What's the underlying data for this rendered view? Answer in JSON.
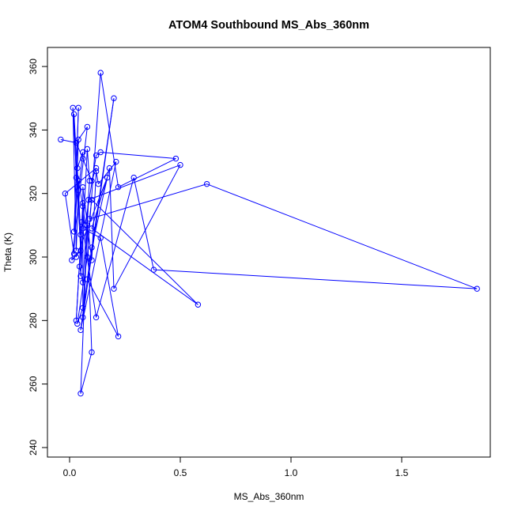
{
  "chart_data": {
    "type": "line",
    "title": "ATOM4 Southbound MS_Abs_360nm",
    "xlabel": "MS_Abs_360nm",
    "ylabel": "Theta (K)",
    "xlim": [
      -0.1,
      1.9
    ],
    "ylim": [
      237,
      366
    ],
    "x_ticks": [
      0.0,
      0.5,
      1.0,
      1.5
    ],
    "x_tick_labels": [
      "0.0",
      "0.5",
      "1.0",
      "1.5"
    ],
    "y_ticks": [
      240,
      260,
      280,
      300,
      320,
      340,
      360
    ],
    "y_tick_labels": [
      "240",
      "260",
      "280",
      "300",
      "320",
      "340",
      "360"
    ],
    "grid": false,
    "legend": "none",
    "series": [
      {
        "color": "#0000ff",
        "marker": "open-circle",
        "points": [
          [
            -0.04,
            337
          ],
          [
            0.03,
            336
          ],
          [
            0.06,
            331
          ],
          [
            0.1,
            324
          ],
          [
            0.12,
            328
          ],
          [
            -0.02,
            320
          ],
          [
            0.02,
            301
          ],
          [
            0.04,
            337
          ],
          [
            0.08,
            341
          ],
          [
            0.01,
            299
          ],
          [
            0.05,
            302
          ],
          [
            0.015,
            347
          ],
          [
            0.03,
            302
          ],
          [
            0.04,
            321
          ],
          [
            0.06,
            333
          ],
          [
            0.035,
            328
          ],
          [
            0.05,
            307
          ],
          [
            0.02,
            345
          ],
          [
            0.03,
            325
          ],
          [
            0.04,
            347
          ],
          [
            0.02,
            308
          ],
          [
            0.04,
            324
          ],
          [
            0.06,
            316
          ],
          [
            0.045,
            297
          ],
          [
            0.06,
            292
          ],
          [
            0.09,
            324
          ],
          [
            0.08,
            334
          ],
          [
            0.05,
            294
          ],
          [
            0.055,
            311
          ],
          [
            0.03,
            280
          ],
          [
            0.06,
            317
          ],
          [
            0.07,
            310
          ],
          [
            0.12,
            332
          ],
          [
            0.14,
            333
          ],
          [
            0.48,
            331
          ],
          [
            0.22,
            322
          ],
          [
            0.14,
            358
          ],
          [
            0.08,
            300
          ],
          [
            0.035,
            279
          ],
          [
            0.06,
            284
          ],
          [
            0.06,
            322
          ],
          [
            0.1,
            299
          ],
          [
            0.12,
            327
          ],
          [
            0.13,
            323
          ],
          [
            0.21,
            330
          ],
          [
            0.05,
            277
          ],
          [
            0.1,
            303
          ],
          [
            0.18,
            328
          ],
          [
            0.2,
            290
          ],
          [
            0.5,
            329
          ],
          [
            0.085,
            318
          ],
          [
            0.05,
            257
          ],
          [
            0.1,
            270
          ],
          [
            0.08,
            310
          ],
          [
            0.06,
            281
          ],
          [
            0.2,
            350
          ],
          [
            0.08,
            293
          ],
          [
            0.22,
            275
          ],
          [
            0.14,
            306
          ],
          [
            0.06,
            309
          ],
          [
            0.12,
            281
          ],
          [
            0.29,
            325
          ],
          [
            0.38,
            296
          ],
          [
            1.84,
            290
          ],
          [
            0.62,
            323
          ],
          [
            0.09,
            312
          ],
          [
            0.1,
            318
          ],
          [
            0.58,
            285
          ],
          [
            0.1,
            309
          ],
          [
            0.17,
            325
          ],
          [
            0.03,
            300
          ]
        ]
      }
    ]
  }
}
